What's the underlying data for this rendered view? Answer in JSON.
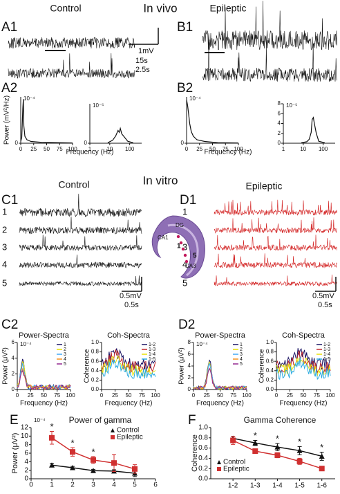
{
  "headings": {
    "in_vivo": "In vivo",
    "control_vivo": "Control",
    "epileptic_vivo": "Epileptic",
    "in_vitro": "In vitro",
    "control_vitro": "Control",
    "epileptic_vitro": "Epileptic"
  },
  "panels": {
    "A1": "A1",
    "B1": "B1",
    "A2": "A2",
    "B2": "B2",
    "C1": "C1",
    "D1": "D1",
    "C2": "C2",
    "D2": "D2",
    "E": "E",
    "F": "F"
  },
  "scale_bars": {
    "a_volt": "1mV",
    "a_time_top": "15s",
    "a_time_bottom": "2.5s",
    "c_volt": "0.5mV",
    "c_time": "0.5s",
    "d_volt": "0.5mV",
    "d_time": "0.5s"
  },
  "trace_numbers_c": [
    "1",
    "2",
    "3",
    "4",
    "5"
  ],
  "trace_numbers_d": [
    "1",
    "2",
    "3",
    "4",
    "5"
  ],
  "hippocampus": {
    "dg": "DG",
    "ca1": "CA1",
    "site_1": "1",
    "site_5": "5",
    "ca3": "CA3"
  },
  "chart_data": [
    {
      "type": "line",
      "scale_note": "10⁻⁴",
      "ylabel": "Power (mV²/Hz)",
      "xlabel": "Frequency (Hz)",
      "xlim": [
        0,
        100
      ],
      "xticks": [
        0,
        25,
        50,
        75,
        100
      ],
      "ylim": [
        0,
        8
      ],
      "yticks": [
        0
      ]
    },
    {
      "type": "line",
      "scale_note": "10⁻⁵",
      "xscale": "log",
      "xlim": [
        1,
        400
      ],
      "xticks": [
        1,
        10,
        100
      ],
      "ylim": [
        0,
        8
      ],
      "yticks": [
        0
      ]
    },
    {
      "type": "line",
      "scale_note": "10⁻⁴",
      "xlabel": "Frequency (Hz)",
      "xlim": [
        0,
        100
      ],
      "xticks": [
        0,
        25,
        50,
        75,
        100
      ],
      "ylim": [
        0,
        8
      ],
      "yticks": [
        0
      ]
    },
    {
      "type": "line",
      "scale_note": "10⁻⁵",
      "xscale": "log",
      "xlim": [
        1,
        400
      ],
      "xticks": [
        1,
        10,
        100
      ],
      "ylim": [
        0,
        8
      ],
      "yticks": [
        0,
        2,
        4,
        6,
        8
      ]
    },
    {
      "type": "line",
      "title": "Power-Spectra",
      "scale_note": "10⁻⁴",
      "ylabel": "Power (μV²)",
      "xlabel": "Frequency (Hz)",
      "xlim": [
        0,
        100
      ],
      "xticks": [
        0,
        25,
        50,
        75,
        100
      ],
      "ylim": [
        0,
        6
      ],
      "yticks": [
        0,
        2,
        4,
        6
      ],
      "series": [
        {
          "name": "1",
          "color": "#1b1464"
        },
        {
          "name": "2",
          "color": "#e8e000"
        },
        {
          "name": "3",
          "color": "#3fa9f5"
        },
        {
          "name": "4",
          "color": "#f7931e"
        },
        {
          "name": "5",
          "color": "#93278f"
        }
      ]
    },
    {
      "type": "line",
      "title": "Coh-Spectra",
      "ylabel": "Coherence",
      "xlabel": "Frequency (Hz)",
      "xlim": [
        0,
        100
      ],
      "xticks": [
        0,
        25,
        50,
        75,
        100
      ],
      "ylim": [
        0,
        1
      ],
      "yticks": [
        {
          "value": 0,
          "label": "0.0"
        },
        0.2,
        0.4,
        0.6,
        0.8,
        {
          "value": 1,
          "label": "1.0"
        }
      ],
      "series": [
        {
          "name": "1-2",
          "color": "#1b1464"
        },
        {
          "name": "1-3",
          "color": "#c0272d"
        },
        {
          "name": "1-4",
          "color": "#e8e000"
        },
        {
          "name": "1-5",
          "color": "#29abe2"
        }
      ]
    },
    {
      "type": "line",
      "title": "Power-Spectra",
      "scale_note": "10⁻⁴",
      "ylabel": "Power (μV²)",
      "xlabel": "Frequency (Hz)",
      "xlim": [
        0,
        100
      ],
      "xticks": [
        0,
        25,
        50,
        75,
        100
      ],
      "ylim": [
        0,
        8
      ],
      "yticks": [
        0,
        2,
        4,
        6,
        8
      ],
      "series": [
        {
          "name": "1",
          "color": "#1b1464"
        },
        {
          "name": "2",
          "color": "#e8e000"
        },
        {
          "name": "3",
          "color": "#3fa9f5"
        },
        {
          "name": "4",
          "color": "#f7931e"
        },
        {
          "name": "5",
          "color": "#93278f"
        }
      ]
    },
    {
      "type": "line",
      "title": "Coh-Spectra",
      "ylabel": "Coherence",
      "xlabel": "Frequency (Hz)",
      "xlim": [
        0,
        100
      ],
      "xticks": [
        0,
        25,
        50,
        75,
        100
      ],
      "ylim": [
        0,
        1
      ],
      "yticks": [
        {
          "value": 0,
          "label": "0.0"
        },
        0.2,
        0.4,
        0.6,
        0.8,
        {
          "value": 1,
          "label": "1.0"
        }
      ],
      "series": [
        {
          "name": "1-2",
          "color": "#1b1464"
        },
        {
          "name": "1-3",
          "color": "#c0272d"
        },
        {
          "name": "1-4",
          "color": "#e8e000"
        },
        {
          "name": "1-5",
          "color": "#29abe2"
        }
      ]
    },
    {
      "type": "errorline",
      "title": "Power of gamma",
      "scale_note": "10⁻⁴",
      "ylabel": "Power (μV²)",
      "x": [
        1,
        2,
        3,
        4,
        5
      ],
      "xlim": [
        0,
        6
      ],
      "xticks": [
        0,
        1,
        2,
        3,
        4,
        5,
        6
      ],
      "ylim": [
        0,
        12
      ],
      "yticks": [
        0,
        2,
        4,
        6,
        8,
        10,
        12
      ],
      "significance": [
        "*",
        "*",
        "*",
        null,
        null
      ],
      "series": [
        {
          "name": "Control",
          "color": "#111111",
          "marker": "triangle",
          "values": [
            3.2,
            2.6,
            1.9,
            1.8,
            1.3
          ],
          "errors": [
            0.4,
            0.3,
            0.3,
            0.3,
            0.8
          ]
        },
        {
          "name": "Epileptic",
          "color": "#d03030",
          "marker": "square",
          "values": [
            9.6,
            6.3,
            4.4,
            3.7,
            2.3
          ],
          "errors": [
            1.5,
            1.0,
            0.8,
            2.0,
            1.0
          ]
        }
      ]
    },
    {
      "type": "errorline",
      "title": "Gamma Coherence",
      "ylabel": "Coherence",
      "categories": [
        "1-2",
        "1-3",
        "1-4",
        "1-5",
        "1-6"
      ],
      "ylim": [
        0,
        1
      ],
      "yticks": [
        {
          "value": 0,
          "label": "0.0"
        },
        0.2,
        0.4,
        0.6,
        0.8,
        {
          "value": 1,
          "label": "1.0"
        }
      ],
      "significance": [
        null,
        "*",
        "*",
        "*",
        "*"
      ],
      "series": [
        {
          "name": "Control",
          "color": "#111111",
          "marker": "triangle",
          "values": [
            0.79,
            0.7,
            0.62,
            0.55,
            0.44
          ],
          "errors": [
            0.04,
            0.05,
            0.07,
            0.08,
            0.08
          ]
        },
        {
          "name": "Epileptic",
          "color": "#d03030",
          "marker": "square",
          "values": [
            0.75,
            0.54,
            0.46,
            0.34,
            0.2
          ],
          "errors": [
            0.08,
            0.04,
            0.05,
            0.06,
            0.03
          ]
        }
      ]
    }
  ]
}
